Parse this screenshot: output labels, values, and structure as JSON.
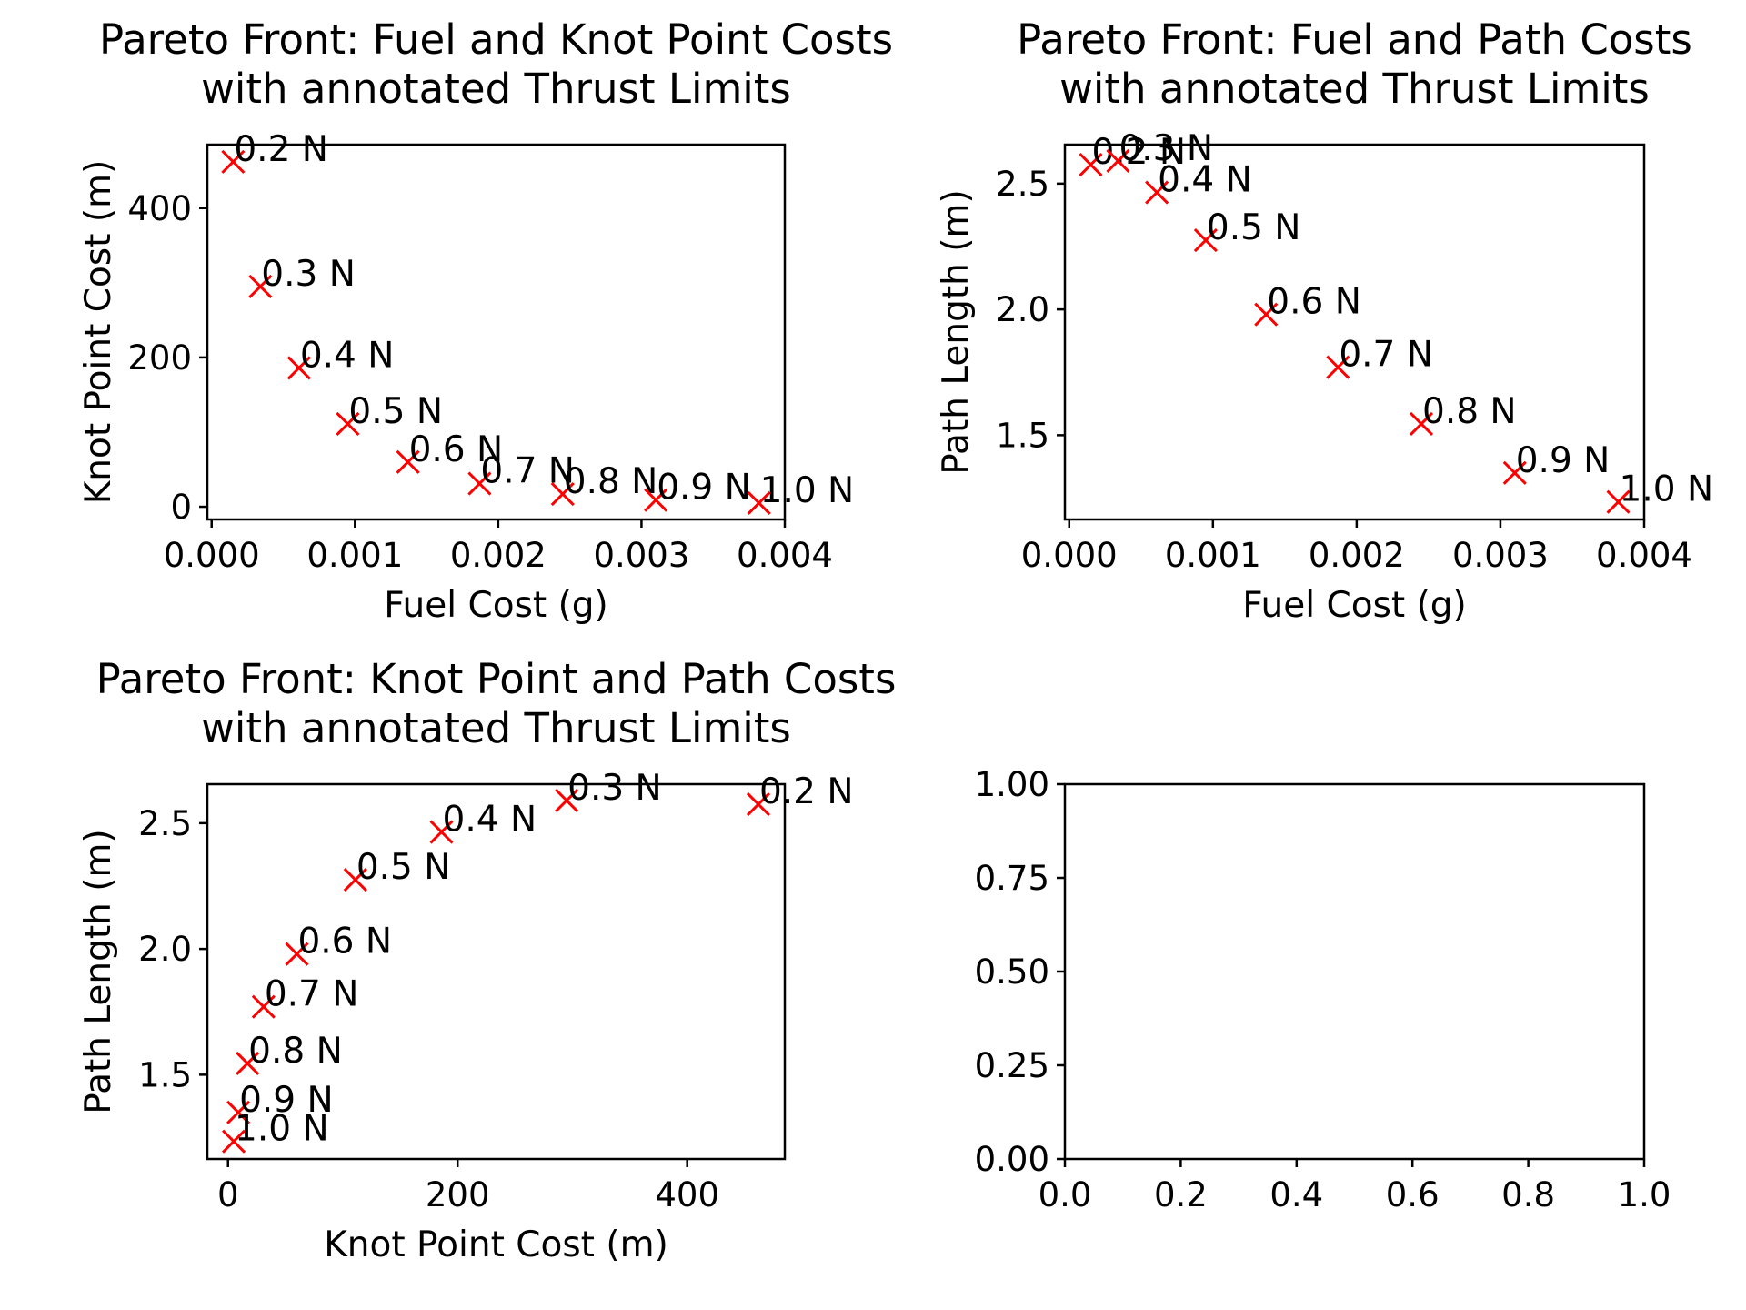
{
  "chart_data": [
    {
      "type": "scatter",
      "title": "Pareto Front: Fuel and Knot Point Costs\nwith annotated Thrust Limits",
      "xlabel": "Fuel Cost (g)",
      "ylabel": "Knot Point Cost (m)",
      "xlim": [
        -3e-05,
        0.004
      ],
      "ylim": [
        -17,
        485
      ],
      "xticks": [
        "0.000",
        "0.001",
        "0.002",
        "0.003",
        "0.004"
      ],
      "xtick_values": [
        0,
        0.001,
        0.002,
        0.003,
        0.004
      ],
      "yticks": [
        "0",
        "200",
        "400"
      ],
      "ytick_values": [
        0,
        200,
        400
      ],
      "marker": "x",
      "marker_color": "#ff0000",
      "grid": false,
      "points": [
        {
          "x": 0.00015,
          "y": 462,
          "label": "0.2 N"
        },
        {
          "x": 0.00034,
          "y": 295,
          "label": "0.3 N"
        },
        {
          "x": 0.00061,
          "y": 186,
          "label": "0.4 N"
        },
        {
          "x": 0.00095,
          "y": 111,
          "label": "0.5 N"
        },
        {
          "x": 0.00137,
          "y": 60,
          "label": "0.6 N"
        },
        {
          "x": 0.00187,
          "y": 31,
          "label": "0.7 N"
        },
        {
          "x": 0.00245,
          "y": 17,
          "label": "0.8 N"
        },
        {
          "x": 0.0031,
          "y": 9,
          "label": "0.9 N"
        },
        {
          "x": 0.00382,
          "y": 5,
          "label": "1.0 N"
        }
      ]
    },
    {
      "type": "scatter",
      "title": "Pareto Front: Fuel and Path Costs\nwith annotated Thrust Limits",
      "xlabel": "Fuel Cost (g)",
      "ylabel": "Path Length (m)",
      "xlim": [
        -3e-05,
        0.004
      ],
      "ylim": [
        1.165,
        2.655
      ],
      "xticks": [
        "0.000",
        "0.001",
        "0.002",
        "0.003",
        "0.004"
      ],
      "xtick_values": [
        0,
        0.001,
        0.002,
        0.003,
        0.004
      ],
      "yticks": [
        "1.5",
        "2.0",
        "2.5"
      ],
      "ytick_values": [
        1.5,
        2.0,
        2.5
      ],
      "marker": "x",
      "marker_color": "#ff0000",
      "grid": false,
      "points": [
        {
          "x": 0.00015,
          "y": 2.575,
          "label": "0.2 N"
        },
        {
          "x": 0.00034,
          "y": 2.59,
          "label": "0.3 N"
        },
        {
          "x": 0.00061,
          "y": 2.465,
          "label": "0.4 N"
        },
        {
          "x": 0.00095,
          "y": 2.275,
          "label": "0.5 N"
        },
        {
          "x": 0.00137,
          "y": 1.98,
          "label": "0.6 N"
        },
        {
          "x": 0.00187,
          "y": 1.77,
          "label": "0.7 N"
        },
        {
          "x": 0.00245,
          "y": 1.545,
          "label": "0.8 N"
        },
        {
          "x": 0.0031,
          "y": 1.35,
          "label": "0.9 N"
        },
        {
          "x": 0.00382,
          "y": 1.235,
          "label": "1.0 N"
        }
      ]
    },
    {
      "type": "scatter",
      "title": "Pareto Front: Knot Point and Path Costs\nwith annotated Thrust Limits",
      "xlabel": "Knot Point Cost (m)",
      "ylabel": "Path Length (m)",
      "xlim": [
        -18,
        485
      ],
      "ylim": [
        1.165,
        2.655
      ],
      "xticks": [
        "0",
        "200",
        "400"
      ],
      "xtick_values": [
        0,
        200,
        400
      ],
      "yticks": [
        "1.5",
        "2.0",
        "2.5"
      ],
      "ytick_values": [
        1.5,
        2.0,
        2.5
      ],
      "marker": "x",
      "marker_color": "#ff0000",
      "grid": false,
      "points": [
        {
          "x": 462,
          "y": 2.575,
          "label": "0.2 N"
        },
        {
          "x": 295,
          "y": 2.59,
          "label": "0.3 N"
        },
        {
          "x": 186,
          "y": 2.465,
          "label": "0.4 N"
        },
        {
          "x": 111,
          "y": 2.275,
          "label": "0.5 N"
        },
        {
          "x": 60,
          "y": 1.98,
          "label": "0.6 N"
        },
        {
          "x": 31,
          "y": 1.77,
          "label": "0.7 N"
        },
        {
          "x": 17,
          "y": 1.545,
          "label": "0.8 N"
        },
        {
          "x": 9,
          "y": 1.35,
          "label": "0.9 N"
        },
        {
          "x": 5,
          "y": 1.235,
          "label": "1.0 N"
        }
      ]
    },
    {
      "type": "scatter",
      "title": "",
      "xlabel": "",
      "ylabel": "",
      "xlim": [
        0,
        1
      ],
      "ylim": [
        0,
        1
      ],
      "xticks": [
        "0.0",
        "0.2",
        "0.4",
        "0.6",
        "0.8",
        "1.0"
      ],
      "xtick_values": [
        0,
        0.2,
        0.4,
        0.6,
        0.8,
        1.0
      ],
      "yticks": [
        "0.00",
        "0.25",
        "0.50",
        "0.75",
        "1.00"
      ],
      "ytick_values": [
        0,
        0.25,
        0.5,
        0.75,
        1.0
      ],
      "grid": false,
      "points": []
    }
  ]
}
